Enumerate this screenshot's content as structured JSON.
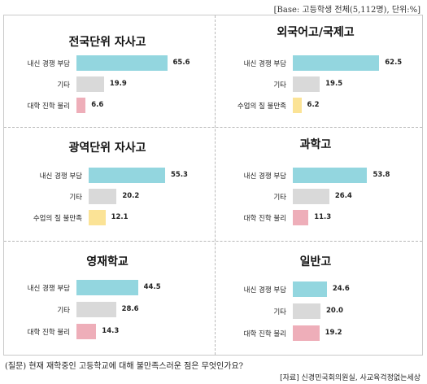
{
  "header": {
    "base_note": "[Base: 고등학생 전체(5,112명), 단위:%]"
  },
  "footer": {
    "question": "(질문) 현재 재학중인 고등학교에 대해 불만족스러운 점은 무엇인가요?",
    "source": "[자료] 신경민국회의원실, 사교육걱정없는세상"
  },
  "colors": {
    "내신 경쟁 부담": "#93d6df",
    "기타": "#d9d9d9",
    "대학 진학 불리": "#eeaeb9",
    "수업의 질 불만족": "#fbe396"
  },
  "chart_data": [
    {
      "type": "bar",
      "orientation": "horizontal",
      "title": "전국단위 자사고",
      "categories": [
        "내신 경쟁 부담",
        "기타",
        "대학 진학 불리"
      ],
      "values": [
        65.6,
        19.9,
        6.6
      ]
    },
    {
      "type": "bar",
      "orientation": "horizontal",
      "title": "외국어고/국제고",
      "categories": [
        "내신 경쟁 부담",
        "기타",
        "수업의 질 불만족"
      ],
      "values": [
        62.5,
        19.5,
        6.2
      ]
    },
    {
      "type": "bar",
      "orientation": "horizontal",
      "title": "광역단위 자사고",
      "categories": [
        "내신 경쟁 부담",
        "기타",
        "수업의 질 불만족"
      ],
      "values": [
        55.3,
        20.2,
        12.1
      ]
    },
    {
      "type": "bar",
      "orientation": "horizontal",
      "title": "과학고",
      "categories": [
        "내신 경쟁 부담",
        "기타",
        "대학 진학 불리"
      ],
      "values": [
        53.8,
        26.4,
        11.3
      ]
    },
    {
      "type": "bar",
      "orientation": "horizontal",
      "title": "영재학교",
      "categories": [
        "내신 경쟁 부담",
        "기타",
        "대학 진학 불리"
      ],
      "values": [
        44.5,
        28.6,
        14.3
      ]
    },
    {
      "type": "bar",
      "orientation": "horizontal",
      "title": "일반고",
      "categories": [
        "내신 경쟁 부담",
        "기타",
        "대학 진학 불리"
      ],
      "values": [
        24.6,
        20.0,
        19.2
      ]
    }
  ]
}
